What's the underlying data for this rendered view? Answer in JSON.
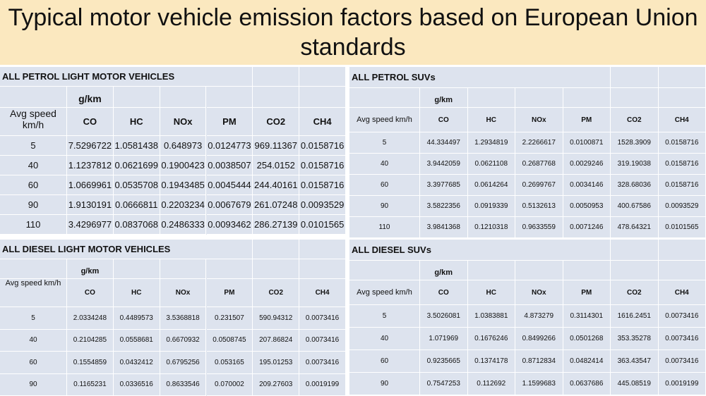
{
  "title": "Typical motor vehicle emission factors based on European Union standards",
  "tables": [
    {
      "title": "ALL PETROL LIGHT MOTOR VEHICLES",
      "unit": "g/km",
      "speed_header": "Avg speed km/h",
      "columns": [
        "CO",
        "HC",
        "NOx",
        "PM",
        "CO2",
        "CH4"
      ],
      "rows": [
        [
          "5",
          "7.5296722",
          "1.0581438",
          "0.648973",
          "0.0124773",
          "969.11367",
          "0.0158716"
        ],
        [
          "40",
          "1.1237812",
          "0.0621699",
          "0.1900423",
          "0.0038507",
          "254.0152",
          "0.0158716"
        ],
        [
          "60",
          "1.0669961",
          "0.0535708",
          "0.1943485",
          "0.0045444",
          "244.40161",
          "0.0158716"
        ],
        [
          "90",
          "1.9130191",
          "0.0666811",
          "0.2203234",
          "0.0067679",
          "261.07248",
          "0.0093529"
        ],
        [
          "110",
          "3.4296977",
          "0.0837068",
          "0.2486333",
          "0.0093462",
          "286.27139",
          "0.0101565"
        ]
      ]
    },
    {
      "title": "ALL PETROL SUVs",
      "unit": "g/km",
      "speed_header": "Avg speed km/h",
      "columns": [
        "CO",
        "HC",
        "NOx",
        "PM",
        "CO2",
        "CH4"
      ],
      "rows": [
        [
          "5",
          "44.334497",
          "1.2934819",
          "2.2266617",
          "0.0100871",
          "1528.3909",
          "0.0158716"
        ],
        [
          "40",
          "3.9442059",
          "0.0621108",
          "0.2687768",
          "0.0029246",
          "319.19038",
          "0.0158716"
        ],
        [
          "60",
          "3.3977685",
          "0.0614264",
          "0.2699767",
          "0.0034146",
          "328.68036",
          "0.0158716"
        ],
        [
          "90",
          "3.5822356",
          "0.0919339",
          "0.5132613",
          "0.0050953",
          "400.67586",
          "0.0093529"
        ],
        [
          "110",
          "3.9841368",
          "0.1210318",
          "0.9633559",
          "0.0071246",
          "478.64321",
          "0.0101565"
        ]
      ]
    },
    {
      "title": "ALL DIESEL LIGHT MOTOR VEHICLES",
      "unit": "g/km",
      "speed_header": "Avg speed km/h",
      "columns": [
        "CO",
        "HC",
        "NOx",
        "PM",
        "CO2",
        "CH4"
      ],
      "rows": [
        [
          "5",
          "2.0334248",
          "0.4489573",
          "3.5368818",
          "0.231507",
          "590.94312",
          "0.0073416"
        ],
        [
          "40",
          "0.2104285",
          "0.0558681",
          "0.6670932",
          "0.0508745",
          "207.86824",
          "0.0073416"
        ],
        [
          "60",
          "0.1554859",
          "0.0432412",
          "0.6795256",
          "0.053165",
          "195.01253",
          "0.0073416"
        ],
        [
          "90",
          "0.1165231",
          "0.0336516",
          "0.8633546",
          "0.070002",
          "209.27603",
          "0.0019199"
        ]
      ]
    },
    {
      "title": "ALL DIESEL SUVs",
      "unit": "g/km",
      "speed_header": "Avg speed km/h",
      "columns": [
        "CO",
        "HC",
        "NOx",
        "PM",
        "CO2",
        "CH4"
      ],
      "rows": [
        [
          "5",
          "3.5026081",
          "1.0383881",
          "4.873279",
          "0.3114301",
          "1616.2451",
          "0.0073416"
        ],
        [
          "40",
          "1.071969",
          "0.1676246",
          "0.8499266",
          "0.0501268",
          "353.35278",
          "0.0073416"
        ],
        [
          "60",
          "0.9235665",
          "0.1374178",
          "0.8712834",
          "0.0482414",
          "363.43547",
          "0.0073416"
        ],
        [
          "90",
          "0.7547253",
          "0.112692",
          "1.1599683",
          "0.0637686",
          "445.08519",
          "0.0019199"
        ]
      ]
    }
  ]
}
